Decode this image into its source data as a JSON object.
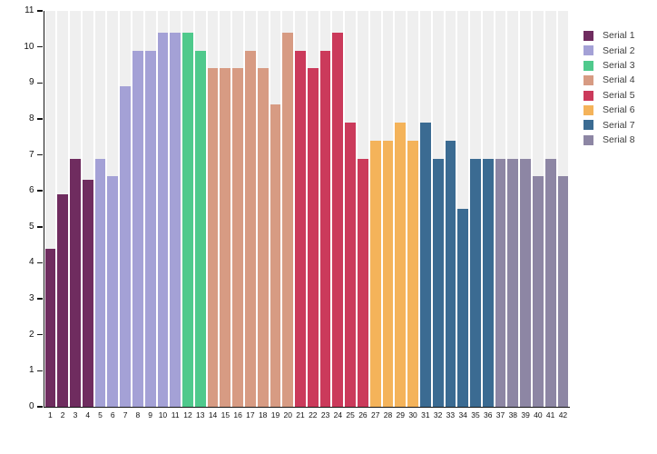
{
  "chart_data": {
    "type": "bar",
    "title": "",
    "xlabel": "",
    "ylabel": "",
    "categories": [
      "1",
      "2",
      "3",
      "4",
      "5",
      "6",
      "7",
      "8",
      "9",
      "10",
      "11",
      "12",
      "13",
      "14",
      "15",
      "16",
      "17",
      "18",
      "19",
      "20",
      "21",
      "22",
      "23",
      "24",
      "25",
      "26",
      "27",
      "28",
      "29",
      "30",
      "31",
      "32",
      "33",
      "34",
      "35",
      "36",
      "37",
      "38",
      "39",
      "40",
      "41",
      "42"
    ],
    "series": [
      {
        "name": "Serial 1",
        "color": "#6f2c5f",
        "values": [
          4.4,
          5.9,
          6.9,
          6.3
        ]
      },
      {
        "name": "Serial 2",
        "color": "#a4a1d6",
        "values": [
          6.9,
          6.4,
          8.9,
          9.9,
          9.9,
          10.4,
          10.4
        ]
      },
      {
        "name": "Serial 3",
        "color": "#4fc98c",
        "values": [
          10.4,
          9.9
        ]
      },
      {
        "name": "Serial 4",
        "color": "#d79b83",
        "values": [
          9.4,
          9.4,
          9.4,
          9.9,
          9.4,
          8.4,
          10.4
        ]
      },
      {
        "name": "Serial 5",
        "color": "#cb3a5b",
        "values": [
          9.9,
          9.4,
          9.9,
          10.4,
          7.9,
          6.9
        ]
      },
      {
        "name": "Serial 6",
        "color": "#f4b35a",
        "values": [
          7.4,
          7.4,
          7.9,
          7.4
        ]
      },
      {
        "name": "Serial 7",
        "color": "#3b6b92",
        "values": [
          7.9,
          6.9,
          7.4,
          5.5,
          6.9,
          6.9
        ]
      },
      {
        "name": "Serial 8",
        "color": "#8d86a4",
        "values": [
          6.9,
          6.9,
          6.9,
          6.4,
          6.9,
          6.4
        ]
      }
    ],
    "ylim": [
      0,
      11
    ],
    "yticks": [
      0,
      1,
      2,
      3,
      4,
      5,
      6,
      7,
      8,
      9,
      10,
      11
    ],
    "legend": [
      "Serial 1",
      "Serial 2",
      "Serial 3",
      "Serial 4",
      "Serial 5",
      "Serial 6",
      "Serial 7",
      "Serial 8"
    ],
    "legend_position": "right",
    "grid": false,
    "band_color": "#efefef",
    "axis_color": "#141414"
  }
}
